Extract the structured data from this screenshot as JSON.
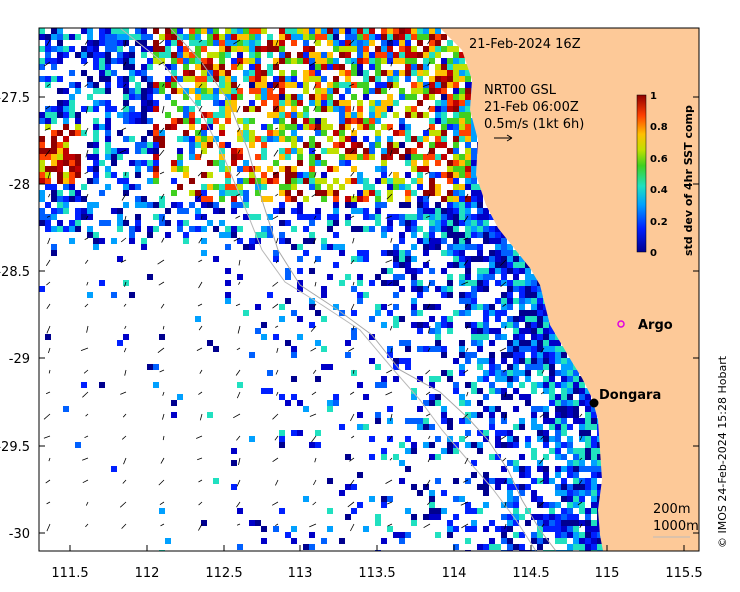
{
  "map": {
    "date_label": "21-Feb-2024 16Z",
    "current_source": "NRT00 GSL",
    "current_time": "21-Feb 06:00Z",
    "arrow_scale_label": "0.5m/s (1kt 6h)",
    "x_ticks": [
      "111.5",
      "112",
      "112.5",
      "113",
      "113.5",
      "114",
      "114.5",
      "115",
      "115.5"
    ],
    "y_ticks": [
      "-27.5",
      "-28",
      "-28.5",
      "-29",
      "-29.5",
      "-30"
    ],
    "places": [
      {
        "name": "Dongara",
        "kind": "town"
      },
      {
        "name": "Argo",
        "kind": "float"
      }
    ],
    "isobath_legend": [
      "200m",
      "1000m"
    ],
    "colorbar": {
      "title": "std dev of 4hr SST comp",
      "ticks": [
        "0",
        "0.2",
        "0.4",
        "0.6",
        "0.8",
        "1"
      ]
    },
    "copyright": "© IMOS 24-Feb-2024 15:28 Hobart",
    "colors": {
      "land": "#fdc998",
      "water": "#ffffff",
      "argo": "#e000e0"
    }
  }
}
